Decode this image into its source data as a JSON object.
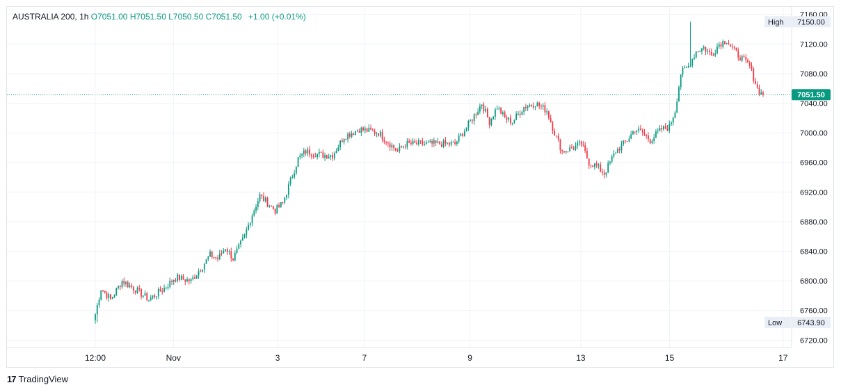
{
  "legend": {
    "symbol": "AUSTRALIA 200",
    "interval": "1h",
    "open": "O7051.00",
    "high": "H7051.50",
    "low": "L7050.50",
    "close": "C7051.50",
    "change": "+1.00 (+0.01%)"
  },
  "footer": {
    "brand": "TradingView"
  },
  "colors": {
    "up": "#089981",
    "down": "#f23645",
    "grid": "#f0f3fa",
    "axis": "#e0e3eb"
  },
  "chart_data": {
    "type": "candlestick",
    "ylim": [
      6710,
      7170
    ],
    "y_ticks": [
      6720,
      6760,
      6800,
      6840,
      6880,
      6920,
      6960,
      7000,
      7040,
      7080,
      7120,
      7160
    ],
    "y_tick_labels": [
      "6720.00",
      "6760.00",
      "6800.00",
      "6840.00",
      "6880.00",
      "6920.00",
      "6960.00",
      "7000.00",
      "7040.00",
      "7080.00",
      "7120.00",
      "7160.00"
    ],
    "x_ticks": [
      {
        "label": "12:00",
        "pos": 0.0
      },
      {
        "label": "Nov",
        "pos": 0.117
      },
      {
        "label": "3",
        "pos": 0.273
      },
      {
        "label": "7",
        "pos": 0.403
      },
      {
        "label": "9",
        "pos": 0.561
      },
      {
        "label": "13",
        "pos": 0.727
      },
      {
        "label": "15",
        "pos": 0.86
      },
      {
        "label": "17",
        "pos": 1.03
      }
    ],
    "high_marker": {
      "label": "High",
      "value": "7150.00",
      "price": 7150
    },
    "low_marker": {
      "label": "Low",
      "value": "6743.90",
      "price": 6743.9
    },
    "last_price": {
      "value": "7051.50",
      "price": 7051.5
    },
    "anchors": [
      [
        0,
        6755
      ],
      [
        3,
        6790
      ],
      [
        8,
        6775
      ],
      [
        14,
        6800
      ],
      [
        20,
        6790
      ],
      [
        28,
        6775
      ],
      [
        36,
        6790
      ],
      [
        42,
        6805
      ],
      [
        50,
        6800
      ],
      [
        56,
        6820
      ],
      [
        60,
        6835
      ],
      [
        64,
        6830
      ],
      [
        68,
        6845
      ],
      [
        72,
        6830
      ],
      [
        78,
        6860
      ],
      [
        82,
        6890
      ],
      [
        86,
        6915
      ],
      [
        90,
        6905
      ],
      [
        94,
        6895
      ],
      [
        98,
        6905
      ],
      [
        102,
        6935
      ],
      [
        106,
        6965
      ],
      [
        110,
        6975
      ],
      [
        118,
        6970
      ],
      [
        124,
        6970
      ],
      [
        130,
        6995
      ],
      [
        138,
        7005
      ],
      [
        144,
        7002
      ],
      [
        148,
        7000
      ],
      [
        152,
        6990
      ],
      [
        158,
        6975
      ],
      [
        162,
        6985
      ],
      [
        170,
        6985
      ],
      [
        180,
        6985
      ],
      [
        188,
        6985
      ],
      [
        196,
        7015
      ],
      [
        202,
        7040
      ],
      [
        206,
        7015
      ],
      [
        210,
        7035
      ],
      [
        214,
        7020
      ],
      [
        218,
        7015
      ],
      [
        224,
        7035
      ],
      [
        230,
        7040
      ],
      [
        236,
        7030
      ],
      [
        240,
        7000
      ],
      [
        244,
        6975
      ],
      [
        250,
        6980
      ],
      [
        254,
        6985
      ],
      [
        258,
        6960
      ],
      [
        262,
        6955
      ],
      [
        266,
        6945
      ],
      [
        272,
        6975
      ],
      [
        278,
        6990
      ],
      [
        282,
        7005
      ],
      [
        286,
        7000
      ],
      [
        290,
        6990
      ],
      [
        296,
        7005
      ],
      [
        300,
        7008
      ],
      [
        303,
        7030
      ],
      [
        306,
        7080
      ],
      [
        310,
        7090
      ],
      [
        314,
        7110
      ],
      [
        318,
        7115
      ],
      [
        322,
        7105
      ],
      [
        326,
        7120
      ],
      [
        330,
        7125
      ],
      [
        334,
        7110
      ],
      [
        338,
        7100
      ],
      [
        342,
        7090
      ],
      [
        346,
        7060
      ],
      [
        349,
        7050
      ]
    ],
    "candles": 350
  }
}
